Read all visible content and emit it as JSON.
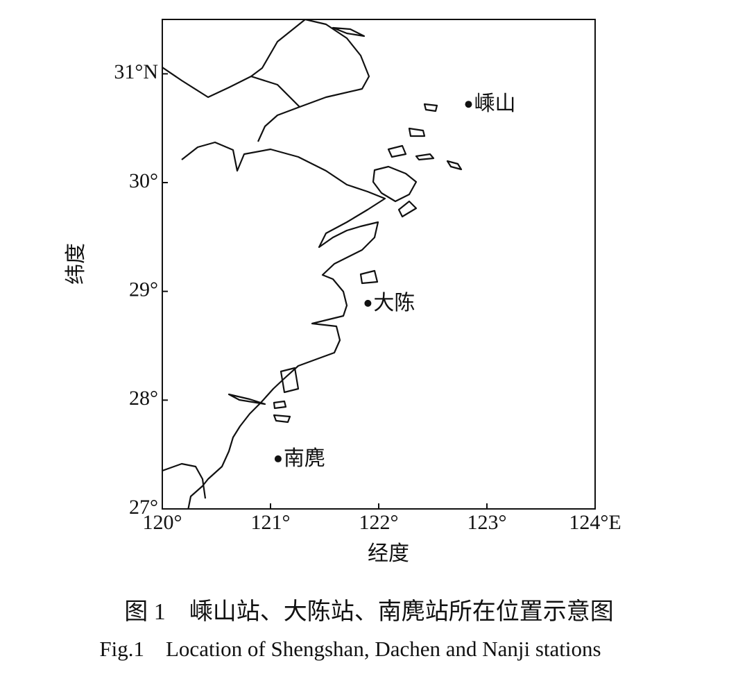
{
  "chart_data": {
    "type": "map",
    "x_label": "经度",
    "y_label": "纬度",
    "xlim": [
      120,
      124
    ],
    "ylim": [
      27,
      31.5
    ],
    "xticks": [
      {
        "value": 120,
        "label": "120°"
      },
      {
        "value": 121,
        "label": "121°"
      },
      {
        "value": 122,
        "label": "122°"
      },
      {
        "value": 123,
        "label": "123°"
      },
      {
        "value": 124,
        "label": "124°E"
      }
    ],
    "yticks": [
      {
        "value": 27,
        "label": "27°"
      },
      {
        "value": 28,
        "label": "28°"
      },
      {
        "value": 29,
        "label": "29°"
      },
      {
        "value": 30,
        "label": "30°"
      },
      {
        "value": 31,
        "label": "31°N"
      }
    ],
    "color": "#111111",
    "stations": [
      {
        "name": "嵊山",
        "lon": 122.83,
        "lat": 30.72
      },
      {
        "name": "大陈",
        "lon": 121.9,
        "lat": 28.89
      },
      {
        "name": "南麂",
        "lon": 121.07,
        "lat": 27.46
      }
    ]
  },
  "caption": {
    "chinese": "图 1　嵊山站、大陈站、南麂站所在位置示意图",
    "english": "Fig.1　Location of Shengshan, Dachen and Nanji stations"
  }
}
